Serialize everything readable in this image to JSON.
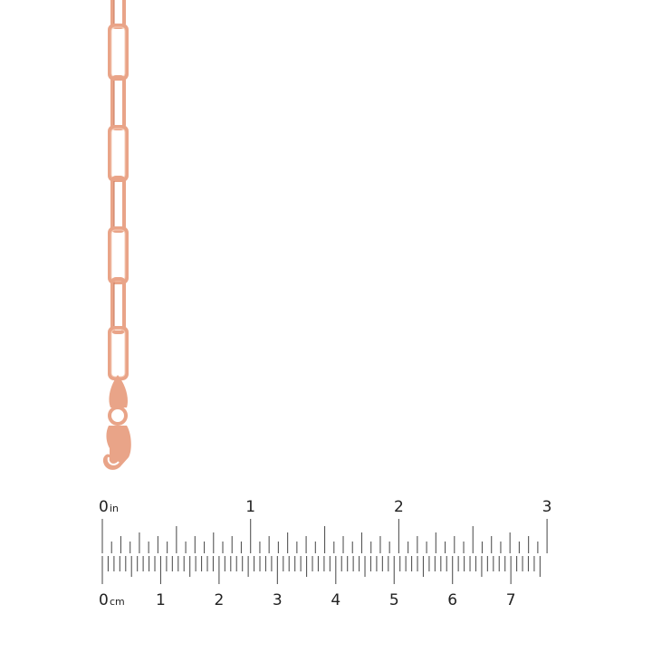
{
  "product": {
    "colors": {
      "metal": "#e9a488",
      "metal_dark": "#c97a5e",
      "metal_light": "#f6cdb8"
    }
  },
  "ruler": {
    "inch_unit": "in",
    "cm_unit": "cm",
    "inch_labels": [
      "0",
      "1",
      "2",
      "3"
    ],
    "cm_labels": [
      "0",
      "1",
      "2",
      "3",
      "4",
      "5",
      "6",
      "7"
    ],
    "tick_color": "#555555"
  }
}
